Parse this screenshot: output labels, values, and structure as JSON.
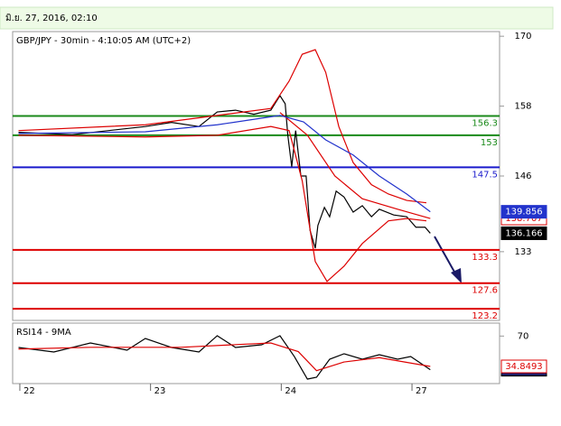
{
  "header": {
    "date": "มิ.ย. 27, 2016, 02:10"
  },
  "chart_data": [
    {
      "type": "line",
      "title": "GBP/JPY - 30min - 4:10:05 AM (UTC+2)",
      "xlim": [
        -0.055,
        3.67
      ],
      "xticks": [
        {
          "value": 0,
          "label": "22"
        },
        {
          "value": 1,
          "label": "23"
        },
        {
          "value": 2,
          "label": "24"
        },
        {
          "value": 3,
          "label": "27"
        }
      ],
      "ylim": [
        121.2,
        170.8
      ],
      "yticks": [
        170,
        158,
        146,
        133
      ],
      "levels": [
        {
          "value": 156.3,
          "color": "#1a8a1a"
        },
        {
          "value": 153,
          "color": "#1a8a1a"
        },
        {
          "value": 147.5,
          "color": "#1a1acc"
        },
        {
          "value": 133.3,
          "color": "#dd0000"
        },
        {
          "value": 127.6,
          "color": "#dd0000"
        },
        {
          "value": 123.2,
          "color": "#dd0000"
        }
      ],
      "series": [
        {
          "color": "#000000",
          "badge": {
            "fill": "#000000",
            "text": "#ffffff"
          },
          "x": [
            -0.01,
            0.4,
            0.68,
            0.96,
            1.16,
            1.37,
            1.51,
            1.65,
            1.79,
            1.92,
            1.99,
            2.03,
            2.05,
            2.08,
            2.11,
            2.15,
            2.19,
            2.22,
            2.26,
            2.28,
            2.33,
            2.37,
            2.42,
            2.48,
            2.55,
            2.62,
            2.69,
            2.75,
            2.86,
            2.96,
            3.03,
            3.1,
            3.14
          ],
          "values": [
            153.5,
            153.1,
            153.8,
            154.5,
            155.2,
            154.5,
            157.0,
            157.3,
            156.6,
            157.3,
            159.8,
            158.4,
            153.0,
            147.6,
            153.8,
            146.0,
            146.0,
            136.7,
            133.6,
            137.5,
            140.6,
            139.0,
            143.4,
            142.4,
            139.8,
            140.9,
            139.0,
            140.3,
            139.3,
            139.0,
            137.2,
            137.2,
            136.166
          ]
        },
        {
          "color": "#dd0000",
          "x": [
            -0.01,
            0.96,
            1.51,
            1.92,
            2.06,
            2.16,
            2.26,
            2.34,
            2.44,
            2.55,
            2.69,
            2.82,
            2.96,
            3.11
          ],
          "values": [
            153.8,
            154.8,
            156.4,
            157.6,
            162.3,
            166.9,
            167.7,
            163.8,
            154.5,
            148.3,
            144.5,
            142.9,
            141.8,
            141.4
          ]
        },
        {
          "color": "#dd0000",
          "badge": {
            "fill": "#ffffff",
            "text": "#dd0000"
          },
          "x": [
            1.99,
            2.2,
            2.41,
            2.62,
            2.89,
            3.14
          ],
          "values": [
            156.9,
            153.0,
            146.0,
            142.1,
            140.3,
            138.707
          ]
        },
        {
          "color": "#dd0000",
          "x": [
            -0.01,
            0.96,
            1.51,
            1.92,
            2.06,
            2.16,
            2.26,
            2.35,
            2.48,
            2.62,
            2.82,
            2.96,
            3.11
          ],
          "values": [
            153.0,
            152.7,
            153.0,
            154.5,
            153.8,
            145.2,
            131.3,
            127.9,
            130.5,
            134.4,
            138.3,
            138.7,
            138.3
          ]
        },
        {
          "color": "#2233cc",
          "badge": {
            "fill": "#2233cc",
            "text": "#ffffff"
          },
          "x": [
            -0.01,
            0.96,
            1.51,
            1.99,
            2.17,
            2.34,
            2.55,
            2.75,
            2.96,
            3.14
          ],
          "values": [
            153.3,
            153.6,
            154.8,
            156.4,
            155.3,
            152.2,
            149.6,
            146.0,
            142.9,
            139.856
          ]
        }
      ]
    },
    {
      "type": "line",
      "title": "RSI14 - 9MA",
      "xlim": [
        -0.055,
        3.67
      ],
      "ylim": [
        15,
        85
      ],
      "yticks": [
        70
      ],
      "series": [
        {
          "color": "#000000",
          "badge": {
            "fill": "#1a1a66",
            "text": "#ffffff"
          },
          "x": [
            -0.01,
            0.26,
            0.54,
            0.82,
            0.96,
            1.16,
            1.37,
            1.51,
            1.65,
            1.85,
            1.99,
            2.1,
            2.2,
            2.27,
            2.37,
            2.48,
            2.62,
            2.75,
            2.89,
            2.99,
            3.14
          ],
          "values": [
            56.8,
            51.6,
            62.0,
            53.7,
            67.2,
            56.8,
            51.6,
            70.4,
            56.8,
            59.9,
            70.4,
            46.3,
            20.2,
            22.3,
            43.2,
            49.5,
            43.2,
            48.4,
            43.2,
            46.3,
            31.0786
          ]
        },
        {
          "color": "#dd0000",
          "badge": {
            "fill": "#ffffff",
            "text": "#dd0000"
          },
          "x": [
            -0.01,
            0.54,
            1.23,
            1.92,
            2.13,
            2.27,
            2.48,
            2.75,
            3.14
          ],
          "values": [
            55,
            57,
            57,
            62,
            52,
            30,
            40,
            45,
            34.8493
          ]
        }
      ]
    }
  ]
}
